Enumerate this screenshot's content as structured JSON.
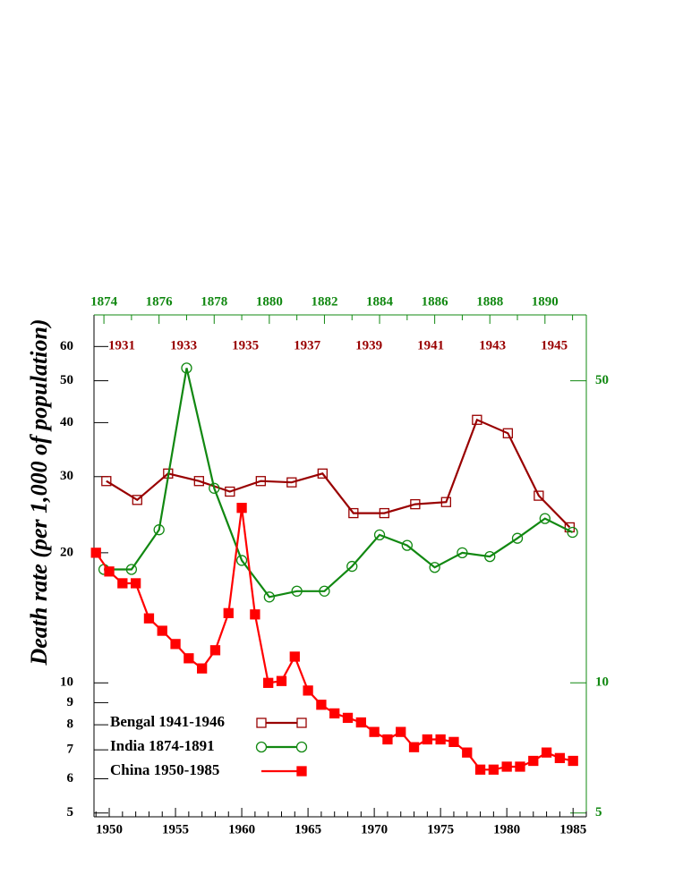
{
  "chart_data": {
    "type": "line",
    "ylabel": "Death rate (per 1,000 of population)",
    "log_y": true,
    "ylim": [
      4.9,
      71
    ],
    "yticks": [
      5,
      6,
      7,
      8,
      9,
      10,
      20,
      30,
      40,
      50,
      60
    ],
    "y2lim": [
      4.9,
      71
    ],
    "y2ticks": [
      5,
      10,
      50
    ],
    "y2color": "#118811",
    "legend": "lower left",
    "series": [
      {
        "name": "Bengal 1941-1946",
        "color": "#990000",
        "marker": "open-square",
        "xlim": [
          1930.1,
          1946.04
        ],
        "xticks": [
          1931,
          1933,
          1935,
          1937,
          1939,
          1941,
          1943,
          1945
        ],
        "x": [
          1930.5,
          1931.5,
          1932.5,
          1933.5,
          1934.5,
          1935.5,
          1936.5,
          1937.5,
          1938.5,
          1939.5,
          1940.5,
          1941.5,
          1942.5,
          1943.5,
          1944.5,
          1945.5
        ],
        "values": [
          29.3,
          26.5,
          30.5,
          29.3,
          27.7,
          29.3,
          29.1,
          30.5,
          24.7,
          24.7,
          25.9,
          26.2,
          40.6,
          37.8,
          27.1,
          22.9
        ]
      },
      {
        "name": "India 1874-1891",
        "color": "#118811",
        "marker": "open-circle",
        "axis": "y2",
        "xlim": [
          1873.64,
          1891.5
        ],
        "xticks": [
          1874,
          1876,
          1878,
          1880,
          1882,
          1884,
          1886,
          1888,
          1890
        ],
        "x": [
          1874,
          1875,
          1876,
          1877,
          1878,
          1879,
          1880,
          1881,
          1882,
          1883,
          1884,
          1885,
          1886,
          1887,
          1888,
          1889,
          1890,
          1891
        ],
        "values": [
          18.3,
          18.3,
          22.6,
          53.5,
          28.2,
          19.2,
          15.8,
          16.3,
          16.3,
          18.6,
          22.0,
          20.8,
          18.5,
          20.0,
          19.6,
          21.6,
          24.0,
          22.3
        ]
      },
      {
        "name": "China 1950-1985",
        "color": "#ff0000",
        "marker": "filled-square",
        "xlim": [
          1948.85,
          1986
        ],
        "xticks": [
          1950,
          1955,
          1960,
          1965,
          1970,
          1975,
          1980,
          1985
        ],
        "x": [
          1949,
          1950,
          1951,
          1952,
          1953,
          1954,
          1955,
          1956,
          1957,
          1958,
          1959,
          1960,
          1961,
          1962,
          1963,
          1964,
          1965,
          1966,
          1967,
          1968,
          1969,
          1970,
          1971,
          1972,
          1973,
          1974,
          1975,
          1976,
          1977,
          1978,
          1979,
          1980,
          1981,
          1982,
          1983,
          1984,
          1985
        ],
        "values": [
          20.0,
          18.1,
          17.0,
          17.0,
          14.1,
          13.2,
          12.3,
          11.4,
          10.8,
          11.9,
          14.5,
          25.4,
          14.4,
          10.0,
          10.1,
          11.5,
          9.6,
          8.9,
          8.5,
          8.3,
          8.1,
          7.7,
          7.4,
          7.7,
          7.1,
          7.4,
          7.4,
          7.3,
          6.9,
          6.3,
          6.3,
          6.4,
          6.4,
          6.6,
          6.9,
          6.7,
          6.6
        ]
      }
    ]
  }
}
